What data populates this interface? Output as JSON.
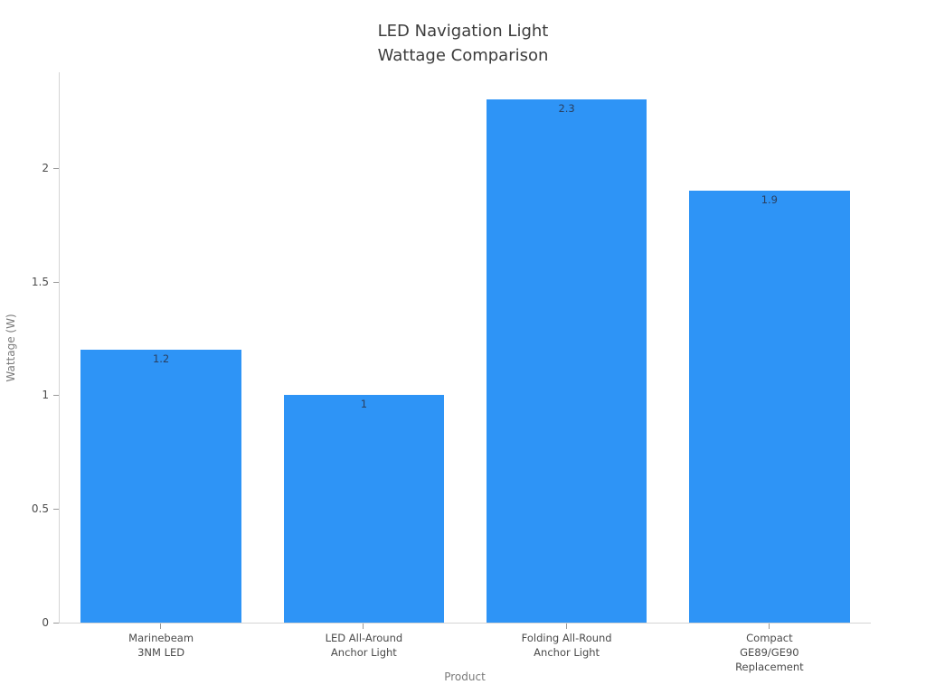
{
  "chart": {
    "title_lines": [
      "LED Navigation Light",
      "Wattage Comparison"
    ]
  },
  "chart_data": {
    "type": "bar",
    "title": "LED Navigation Light\nWattage Comparison",
    "categories": [
      "Marinebeam\n3NM LED",
      "LED All-Around\nAnchor Light",
      "Folding All-Round\nAnchor Light",
      "Compact GE89/GE90\nReplacement"
    ],
    "values": [
      1.2,
      1,
      2.3,
      1.9
    ],
    "value_labels": [
      "1.2",
      "1",
      "2.3",
      "1.9"
    ],
    "xlabel": "Product",
    "ylabel": "Wattage (W)",
    "ylim": [
      0,
      2.42
    ],
    "yticks": [
      0,
      0.5,
      1,
      1.5,
      2
    ],
    "ytick_labels": [
      "0",
      "0.5",
      "1",
      "1.5",
      "2"
    ],
    "grid": false,
    "legend": "none",
    "bar_color": "#2E94F6",
    "value_label_color": "#2a3f5f",
    "value_label_position": "inside-top"
  }
}
